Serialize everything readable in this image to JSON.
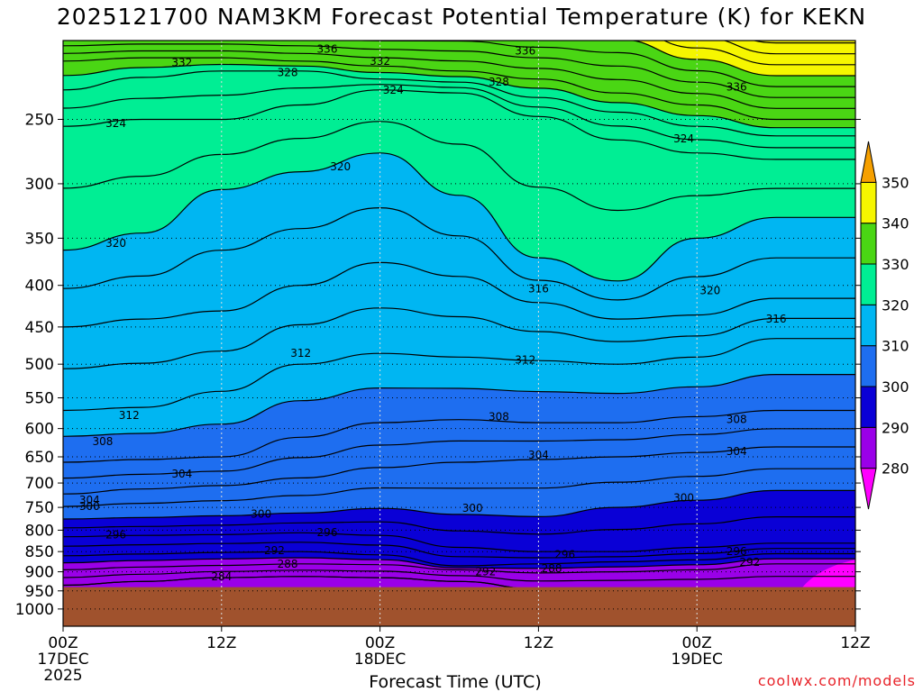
{
  "title": "2025121700 NAM3KM Forecast Potential Temperature (K) for KEKN",
  "credit": "coolwx.com/models",
  "chart_data": {
    "type": "heatmap",
    "title": "2025121700 NAM3KM Forecast Potential Temperature (K) for KEKN",
    "xlabel": "Forecast Time (UTC)",
    "ylabel": "",
    "x_hours": [
      0,
      6,
      12,
      18,
      24,
      30,
      36,
      42,
      48,
      54
    ],
    "x_ticks": [
      {
        "hour": 0,
        "label": "00Z",
        "sub": "17DEC",
        "sub2": "2025"
      },
      {
        "hour": 12,
        "label": "12Z",
        "sub": "",
        "sub2": ""
      },
      {
        "hour": 24,
        "label": "00Z",
        "sub": "18DEC",
        "sub2": ""
      },
      {
        "hour": 36,
        "label": "12Z",
        "sub": "",
        "sub2": ""
      },
      {
        "hour": 48,
        "label": "00Z",
        "sub": "19DEC",
        "sub2": ""
      },
      {
        "hour": 60,
        "label": "12Z",
        "sub": "",
        "sub2": ""
      }
    ],
    "xlim": [
      0,
      60
    ],
    "y_ticks": [
      250,
      300,
      350,
      400,
      450,
      500,
      550,
      600,
      650,
      700,
      750,
      800,
      850,
      900,
      950,
      1000
    ],
    "ylim": [
      200,
      1050
    ],
    "y_scale": "log-pressure",
    "ground_pressure": 940,
    "colorbar": {
      "levels": [
        280,
        290,
        300,
        310,
        320,
        330,
        340,
        350
      ],
      "colors": [
        "#ff00ff",
        "#9a00e8",
        "#0a00d6",
        "#1e6ef0",
        "#00b6f2",
        "#00ee94",
        "#4ad614",
        "#f6f600",
        "#f6a000"
      ]
    },
    "contour_levels": [
      {
        "theta": 284,
        "labels": [
          {
            "hour": 12,
            "p": 913
          }
        ]
      },
      {
        "theta": 288,
        "labels": [
          {
            "hour": 17,
            "p": 880
          },
          {
            "hour": 37,
            "p": 892
          }
        ]
      },
      {
        "theta": 292,
        "labels": [
          {
            "hour": 16,
            "p": 847
          },
          {
            "hour": 32,
            "p": 900
          },
          {
            "hour": 52,
            "p": 876
          }
        ]
      },
      {
        "theta": 296,
        "labels": [
          {
            "hour": 4,
            "p": 810
          },
          {
            "hour": 20,
            "p": 805
          },
          {
            "hour": 38,
            "p": 857
          },
          {
            "hour": 51,
            "p": 850
          }
        ]
      },
      {
        "theta": 300,
        "labels": [
          {
            "hour": 2,
            "p": 748
          },
          {
            "hour": 15,
            "p": 764
          },
          {
            "hour": 31,
            "p": 752
          },
          {
            "hour": 47,
            "p": 730
          }
        ]
      },
      {
        "theta": 304,
        "labels": [
          {
            "hour": 2,
            "p": 735
          },
          {
            "hour": 9,
            "p": 682
          },
          {
            "hour": 36,
            "p": 647
          },
          {
            "hour": 51,
            "p": 640
          }
        ]
      },
      {
        "theta": 308,
        "labels": [
          {
            "hour": 3,
            "p": 622
          },
          {
            "hour": 33,
            "p": 580
          },
          {
            "hour": 51,
            "p": 585
          }
        ]
      },
      {
        "theta": 312,
        "labels": [
          {
            "hour": 5,
            "p": 578
          },
          {
            "hour": 18,
            "p": 485
          },
          {
            "hour": 35,
            "p": 494
          }
        ]
      },
      {
        "theta": 316,
        "labels": [
          {
            "hour": 36,
            "p": 404
          },
          {
            "hour": 54,
            "p": 440
          }
        ]
      },
      {
        "theta": 320,
        "labels": [
          {
            "hour": 4,
            "p": 355
          },
          {
            "hour": 21,
            "p": 286
          },
          {
            "hour": 49,
            "p": 406
          }
        ]
      },
      {
        "theta": 324,
        "labels": [
          {
            "hour": 4,
            "p": 253
          },
          {
            "hour": 25,
            "p": 230
          },
          {
            "hour": 47,
            "p": 264
          }
        ]
      },
      {
        "theta": 328,
        "labels": [
          {
            "hour": 17,
            "p": 219
          },
          {
            "hour": 33,
            "p": 225
          }
        ]
      },
      {
        "theta": 332,
        "labels": [
          {
            "hour": 9,
            "p": 213
          },
          {
            "hour": 24,
            "p": 212
          }
        ]
      },
      {
        "theta": 336,
        "labels": [
          {
            "hour": 20,
            "p": 205
          },
          {
            "hour": 35,
            "p": 206
          },
          {
            "hour": 51,
            "p": 228
          }
        ]
      }
    ],
    "contour_base_pressure": {
      "284": [
        935,
        925,
        915,
        912,
        915,
        925,
        945,
        945,
        945,
        945
      ],
      "288": [
        895,
        888,
        884,
        880,
        882,
        895,
        903,
        900,
        895,
        880
      ],
      "292": [
        860,
        856,
        852,
        850,
        858,
        885,
        880,
        875,
        870,
        855
      ],
      "296": [
        815,
        812,
        810,
        806,
        812,
        840,
        850,
        850,
        840,
        830
      ],
      "300": [
        775,
        772,
        768,
        762,
        752,
        765,
        770,
        750,
        735,
        715
      ],
      "304": [
        722,
        712,
        705,
        690,
        670,
        660,
        655,
        650,
        642,
        632
      ],
      "308": [
        660,
        655,
        650,
        615,
        590,
        585,
        590,
        590,
        580,
        570
      ],
      "312": [
        570,
        565,
        540,
        500,
        485,
        490,
        495,
        500,
        490,
        465
      ],
      "316": [
        450,
        440,
        430,
        400,
        375,
        390,
        420,
        440,
        435,
        415
      ],
      "320": [
        362,
        345,
        305,
        290,
        275,
        310,
        370,
        395,
        350,
        330
      ],
      "324": [
        255,
        250,
        250,
        240,
        230,
        232,
        248,
        265,
        275,
        280
      ],
      "328": [
        230,
        222,
        218,
        218,
        223,
        225,
        235,
        245,
        255,
        262
      ],
      "332": [
        212,
        210,
        210,
        212,
        215,
        218,
        223,
        232,
        240,
        250
      ],
      "336": [
        203,
        202,
        202,
        203,
        205,
        206,
        210,
        215,
        225,
        235
      ]
    },
    "fill_surface_gradient": "theta increases upward; lowest layers 280-290K purple near surface after hour 50",
    "grid": true
  }
}
